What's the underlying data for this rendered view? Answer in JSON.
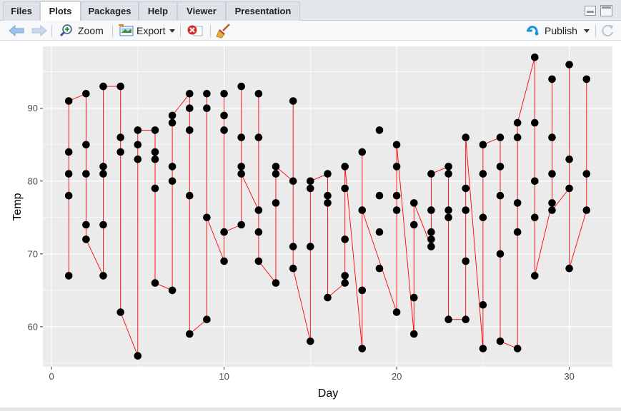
{
  "tabs": [
    {
      "label": "Files"
    },
    {
      "label": "Plots"
    },
    {
      "label": "Packages"
    },
    {
      "label": "Help"
    },
    {
      "label": "Viewer"
    },
    {
      "label": "Presentation"
    }
  ],
  "active_tab": "Plots",
  "toolbar": {
    "zoom_label": "Zoom",
    "export_label": "Export",
    "publish_label": "Publish"
  },
  "icons": [
    "back-arrow-icon",
    "forward-arrow-icon",
    "zoom-icon",
    "export-icon",
    "dropdown-icon",
    "remove-plot-icon",
    "broom-icon",
    "publish-icon",
    "refresh-icon",
    "minimize-icon",
    "maximize-icon"
  ],
  "colors": {
    "panel": "#ebebeb",
    "grid": "#ffffff",
    "line": "#ff0000",
    "point": "#000000"
  },
  "chart_data": {
    "type": "scatter",
    "xlabel": "Day",
    "ylabel": "Temp",
    "xlim": [
      -0.5,
      32.5
    ],
    "ylim": [
      54.5,
      98.5
    ],
    "x_ticks": [
      0,
      10,
      20,
      30
    ],
    "y_ticks": [
      60,
      70,
      80,
      90
    ],
    "grid": true,
    "connecting_line": true,
    "points": [
      [
        1,
        67
      ],
      [
        1,
        78
      ],
      [
        1,
        81
      ],
      [
        1,
        84
      ],
      [
        1,
        91
      ],
      [
        2,
        72
      ],
      [
        2,
        74
      ],
      [
        2,
        81
      ],
      [
        2,
        85
      ],
      [
        2,
        92
      ],
      [
        3,
        67
      ],
      [
        3,
        74
      ],
      [
        3,
        81
      ],
      [
        3,
        82
      ],
      [
        3,
        93
      ],
      [
        4,
        62
      ],
      [
        4,
        84
      ],
      [
        4,
        86
      ],
      [
        4,
        93
      ],
      [
        5,
        56
      ],
      [
        5,
        83
      ],
      [
        5,
        85
      ],
      [
        5,
        87
      ],
      [
        6,
        66
      ],
      [
        6,
        79
      ],
      [
        6,
        83
      ],
      [
        6,
        84
      ],
      [
        6,
        87
      ],
      [
        7,
        65
      ],
      [
        7,
        80
      ],
      [
        7,
        82
      ],
      [
        7,
        88
      ],
      [
        7,
        89
      ],
      [
        8,
        59
      ],
      [
        8,
        78
      ],
      [
        8,
        87
      ],
      [
        8,
        90
      ],
      [
        8,
        92
      ],
      [
        9,
        61
      ],
      [
        9,
        75
      ],
      [
        9,
        90
      ],
      [
        9,
        92
      ],
      [
        10,
        69
      ],
      [
        10,
        73
      ],
      [
        10,
        87
      ],
      [
        10,
        89
      ],
      [
        10,
        92
      ],
      [
        11,
        74
      ],
      [
        11,
        81
      ],
      [
        11,
        82
      ],
      [
        11,
        86
      ],
      [
        11,
        93
      ],
      [
        12,
        69
      ],
      [
        12,
        73
      ],
      [
        12,
        76
      ],
      [
        12,
        86
      ],
      [
        12,
        92
      ],
      [
        13,
        66
      ],
      [
        13,
        77
      ],
      [
        13,
        81
      ],
      [
        13,
        82
      ],
      [
        14,
        68
      ],
      [
        14,
        71
      ],
      [
        14,
        80
      ],
      [
        14,
        91
      ],
      [
        15,
        58
      ],
      [
        15,
        71
      ],
      [
        15,
        79
      ],
      [
        15,
        80
      ],
      [
        16,
        64
      ],
      [
        16,
        77
      ],
      [
        16,
        78
      ],
      [
        16,
        81
      ],
      [
        17,
        66
      ],
      [
        17,
        67
      ],
      [
        17,
        72
      ],
      [
        17,
        79
      ],
      [
        17,
        82
      ],
      [
        18,
        57
      ],
      [
        18,
        65
      ],
      [
        18,
        76
      ],
      [
        18,
        84
      ],
      [
        19,
        68
      ],
      [
        19,
        73
      ],
      [
        19,
        78
      ],
      [
        19,
        87
      ],
      [
        20,
        62
      ],
      [
        20,
        76
      ],
      [
        20,
        78
      ],
      [
        20,
        82
      ],
      [
        20,
        85
      ],
      [
        21,
        59
      ],
      [
        21,
        64
      ],
      [
        21,
        74
      ],
      [
        21,
        77
      ],
      [
        22,
        71
      ],
      [
        22,
        72
      ],
      [
        22,
        73
      ],
      [
        22,
        76
      ],
      [
        22,
        81
      ],
      [
        23,
        61
      ],
      [
        23,
        75
      ],
      [
        23,
        76
      ],
      [
        23,
        81
      ],
      [
        23,
        82
      ],
      [
        24,
        61
      ],
      [
        24,
        69
      ],
      [
        24,
        76
      ],
      [
        24,
        79
      ],
      [
        24,
        86
      ],
      [
        25,
        57
      ],
      [
        25,
        63
      ],
      [
        25,
        75
      ],
      [
        25,
        81
      ],
      [
        25,
        85
      ],
      [
        26,
        58
      ],
      [
        26,
        70
      ],
      [
        26,
        78
      ],
      [
        26,
        82
      ],
      [
        26,
        86
      ],
      [
        27,
        57
      ],
      [
        27,
        73
      ],
      [
        27,
        77
      ],
      [
        27,
        86
      ],
      [
        27,
        88
      ],
      [
        28,
        67
      ],
      [
        28,
        75
      ],
      [
        28,
        80
      ],
      [
        28,
        88
      ],
      [
        28,
        97
      ],
      [
        29,
        76
      ],
      [
        29,
        77
      ],
      [
        29,
        81
      ],
      [
        29,
        86
      ],
      [
        29,
        94
      ],
      [
        30,
        68
      ],
      [
        30,
        79
      ],
      [
        30,
        83
      ],
      [
        30,
        96
      ],
      [
        31,
        76
      ],
      [
        31,
        81
      ],
      [
        31,
        94
      ]
    ],
    "line_path": [
      [
        1,
        67
      ],
      [
        1,
        91
      ],
      [
        2,
        92
      ],
      [
        2,
        72
      ],
      [
        3,
        67
      ],
      [
        3,
        93
      ],
      [
        4,
        93
      ],
      [
        4,
        62
      ],
      [
        5,
        56
      ],
      [
        5,
        87
      ],
      [
        6,
        87
      ],
      [
        6,
        66
      ],
      [
        7,
        65
      ],
      [
        7,
        89
      ],
      [
        8,
        92
      ],
      [
        8,
        59
      ],
      [
        9,
        61
      ],
      [
        9,
        92
      ],
      [
        9,
        75
      ],
      [
        10,
        69
      ],
      [
        10,
        92
      ],
      [
        10,
        73
      ],
      [
        11,
        74
      ],
      [
        11,
        93
      ],
      [
        11,
        81
      ],
      [
        12,
        76
      ],
      [
        12,
        92
      ],
      [
        12,
        69
      ],
      [
        13,
        66
      ],
      [
        13,
        82
      ],
      [
        14,
        80
      ],
      [
        14,
        91
      ],
      [
        14,
        68
      ],
      [
        15,
        58
      ],
      [
        15,
        80
      ],
      [
        16,
        81
      ],
      [
        16,
        64
      ],
      [
        17,
        66
      ],
      [
        17,
        82
      ],
      [
        18,
        57
      ],
      [
        18,
        84
      ],
      [
        18,
        76
      ],
      [
        20,
        62
      ],
      [
        20,
        85
      ],
      [
        21,
        59
      ],
      [
        21,
        77
      ],
      [
        22,
        71
      ],
      [
        22,
        81
      ],
      [
        23,
        82
      ],
      [
        23,
        61
      ],
      [
        24,
        61
      ],
      [
        24,
        86
      ],
      [
        25,
        57
      ],
      [
        25,
        85
      ],
      [
        26,
        86
      ],
      [
        26,
        58
      ],
      [
        27,
        57
      ],
      [
        27,
        88
      ],
      [
        28,
        97
      ],
      [
        28,
        67
      ],
      [
        29,
        77
      ],
      [
        29,
        94
      ],
      [
        29,
        76
      ],
      [
        30,
        79
      ],
      [
        30,
        96
      ],
      [
        30,
        68
      ],
      [
        31,
        76
      ],
      [
        31,
        94
      ]
    ]
  }
}
